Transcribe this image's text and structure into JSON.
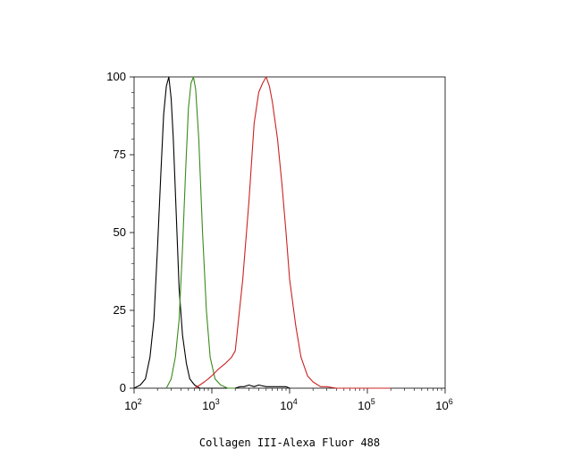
{
  "chart_data": {
    "type": "line",
    "title": "",
    "xlabel": "Collagen III-Alexa Fluor 488",
    "ylabel": "",
    "x_scale": "log",
    "xlim": [
      100,
      1000000
    ],
    "ylim": [
      0,
      100
    ],
    "grid": false,
    "y_ticks": [
      {
        "value": 0,
        "label": "0"
      },
      {
        "value": 25,
        "label": "25"
      },
      {
        "value": 50,
        "label": "50"
      },
      {
        "value": 75,
        "label": "75"
      },
      {
        "value": 100,
        "label": "100"
      }
    ],
    "x_ticks": [
      {
        "value": 100,
        "base": "10",
        "exp": "2"
      },
      {
        "value": 1000,
        "base": "10",
        "exp": "3"
      },
      {
        "value": 10000,
        "base": "10",
        "exp": "4"
      },
      {
        "value": 100000,
        "base": "10",
        "exp": "5"
      },
      {
        "value": 1000000,
        "base": "10",
        "exp": "6"
      }
    ],
    "series": [
      {
        "color": "#000000",
        "x": [
          100,
          120,
          140,
          160,
          180,
          200,
          220,
          240,
          260,
          280,
          300,
          320,
          350,
          380,
          420,
          470,
          520,
          600,
          700,
          800,
          1000,
          2000,
          2300,
          2600,
          3000,
          3500,
          4000,
          5000,
          6000,
          7000,
          8000,
          9000,
          10000
        ],
        "y": [
          0,
          1,
          3,
          10,
          22,
          45,
          68,
          88,
          97,
          100,
          93,
          80,
          55,
          32,
          17,
          8,
          3,
          1,
          0,
          0,
          0,
          0,
          0.5,
          0.5,
          1,
          0.5,
          1,
          0.5,
          0.5,
          0.5,
          0.5,
          0.5,
          0
        ]
      },
      {
        "color": "#3a8a1a",
        "x": [
          260,
          300,
          340,
          380,
          420,
          460,
          500,
          540,
          580,
          620,
          680,
          760,
          850,
          950,
          1100,
          1300,
          1600,
          2000
        ],
        "y": [
          0,
          3,
          10,
          22,
          45,
          70,
          90,
          98,
          100,
          96,
          80,
          50,
          25,
          10,
          3,
          1,
          0,
          0
        ]
      },
      {
        "color": "#cc2222",
        "x": [
          600,
          700,
          800,
          900,
          1000,
          1200,
          1500,
          1800,
          2000,
          2500,
          3000,
          3500,
          4000,
          4500,
          5000,
          5500,
          6000,
          7000,
          8000,
          9000,
          10000,
          12000,
          14000,
          17000,
          20000,
          25000,
          30000,
          40000,
          50000,
          70000,
          100000,
          150000,
          200000
        ],
        "y": [
          0,
          1,
          2,
          3,
          4,
          6,
          8,
          10,
          12,
          35,
          60,
          85,
          95,
          98,
          100,
          97,
          92,
          80,
          65,
          50,
          35,
          20,
          10,
          4,
          2,
          0.5,
          0.5,
          0,
          0,
          0,
          0,
          0,
          0
        ]
      }
    ]
  }
}
